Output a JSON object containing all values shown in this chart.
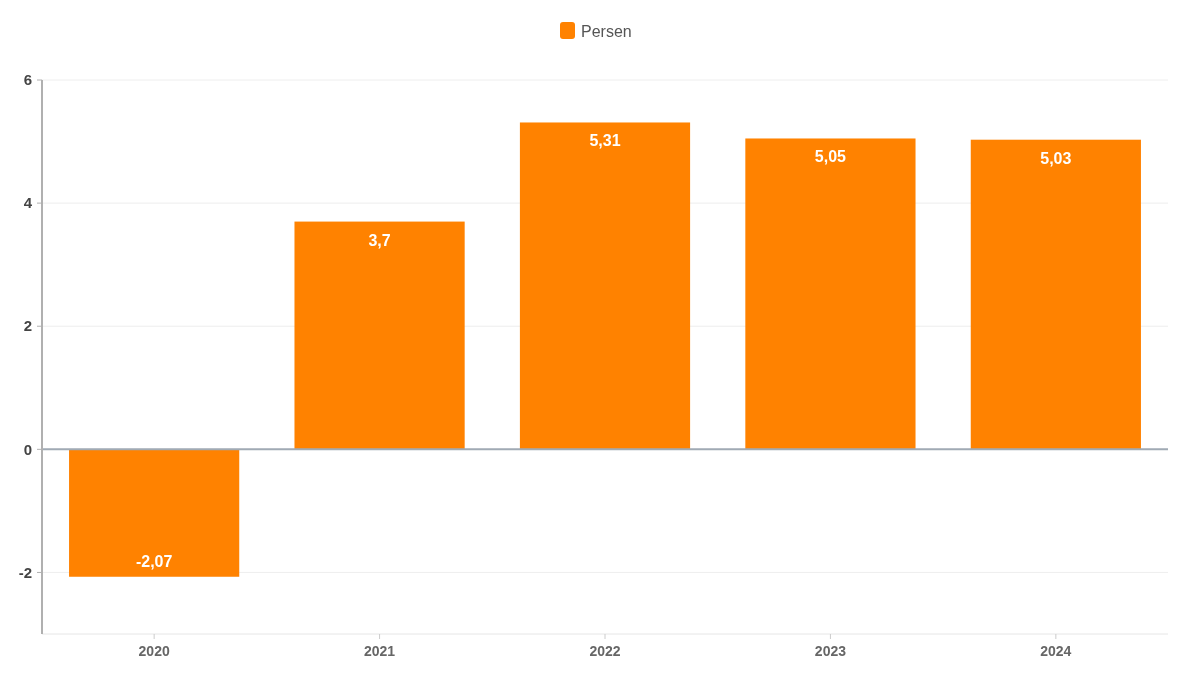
{
  "chart_data": {
    "type": "bar",
    "categories": [
      "2020",
      "2021",
      "2022",
      "2023",
      "2024"
    ],
    "series": [
      {
        "name": "Persen",
        "color": "#ff8200",
        "values": [
          -2.07,
          3.7,
          5.31,
          5.05,
          5.03
        ],
        "value_labels": [
          "-2,07",
          "3,7",
          "5,31",
          "5,05",
          "5,03"
        ]
      }
    ],
    "ylim": [
      -3,
      6
    ],
    "yticks": [
      -2,
      0,
      2,
      4,
      6
    ],
    "grid": "y",
    "legend": "top"
  }
}
